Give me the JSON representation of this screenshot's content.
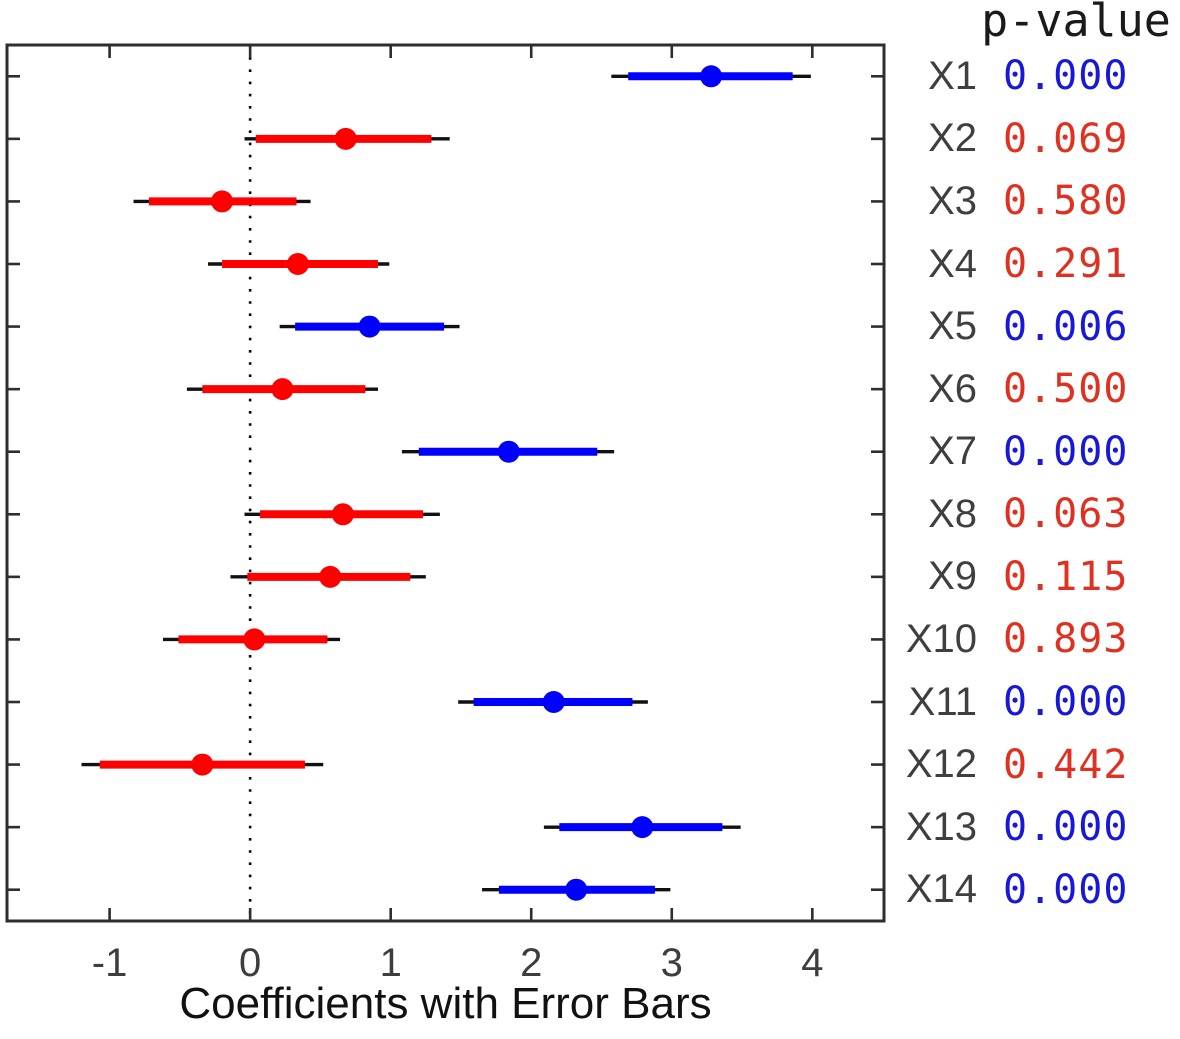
{
  "chart_data": {
    "type": "scatter",
    "subtype": "horizontal-errorbar-coefficient-plot",
    "title": "",
    "xlabel": "Coefficients with Error Bars",
    "ylabel": "",
    "p_value_header": "p-value",
    "x_ticks": [
      -1,
      0,
      1,
      2,
      3,
      4
    ],
    "xlim": [
      -1.73,
      4.51
    ],
    "zero_line_x": 0,
    "grid": false,
    "legend": false,
    "series": [
      {
        "name": "X1",
        "coef": 3.28,
        "ci_inner": [
          2.69,
          3.86
        ],
        "ci_outer": [
          2.57,
          3.99
        ],
        "p_value": "0.000",
        "significant": true
      },
      {
        "name": "X2",
        "coef": 0.68,
        "ci_inner": [
          0.04,
          1.29
        ],
        "ci_outer": [
          -0.04,
          1.42
        ],
        "p_value": "0.069",
        "significant": false
      },
      {
        "name": "X3",
        "coef": -0.2,
        "ci_inner": [
          -0.72,
          0.33
        ],
        "ci_outer": [
          -0.83,
          0.43
        ],
        "p_value": "0.580",
        "significant": false
      },
      {
        "name": "X4",
        "coef": 0.34,
        "ci_inner": [
          -0.2,
          0.91
        ],
        "ci_outer": [
          -0.3,
          0.99
        ],
        "p_value": "0.291",
        "significant": false
      },
      {
        "name": "X5",
        "coef": 0.85,
        "ci_inner": [
          0.32,
          1.38
        ],
        "ci_outer": [
          0.21,
          1.49
        ],
        "p_value": "0.006",
        "significant": true
      },
      {
        "name": "X6",
        "coef": 0.23,
        "ci_inner": [
          -0.34,
          0.82
        ],
        "ci_outer": [
          -0.45,
          0.91
        ],
        "p_value": "0.500",
        "significant": false
      },
      {
        "name": "X7",
        "coef": 1.84,
        "ci_inner": [
          1.2,
          2.47
        ],
        "ci_outer": [
          1.08,
          2.59
        ],
        "p_value": "0.000",
        "significant": true
      },
      {
        "name": "X8",
        "coef": 0.66,
        "ci_inner": [
          0.07,
          1.23
        ],
        "ci_outer": [
          -0.04,
          1.35
        ],
        "p_value": "0.063",
        "significant": false
      },
      {
        "name": "X9",
        "coef": 0.57,
        "ci_inner": [
          -0.02,
          1.14
        ],
        "ci_outer": [
          -0.14,
          1.25
        ],
        "p_value": "0.115",
        "significant": false
      },
      {
        "name": "X10",
        "coef": 0.03,
        "ci_inner": [
          -0.51,
          0.55
        ],
        "ci_outer": [
          -0.62,
          0.64
        ],
        "p_value": "0.893",
        "significant": false
      },
      {
        "name": "X11",
        "coef": 2.16,
        "ci_inner": [
          1.59,
          2.72
        ],
        "ci_outer": [
          1.48,
          2.83
        ],
        "p_value": "0.000",
        "significant": true
      },
      {
        "name": "X12",
        "coef": -0.34,
        "ci_inner": [
          -1.07,
          0.39
        ],
        "ci_outer": [
          -1.2,
          0.52
        ],
        "p_value": "0.442",
        "significant": false
      },
      {
        "name": "X13",
        "coef": 2.79,
        "ci_inner": [
          2.2,
          3.36
        ],
        "ci_outer": [
          2.09,
          3.49
        ],
        "p_value": "0.000",
        "significant": true
      },
      {
        "name": "X14",
        "coef": 2.32,
        "ci_inner": [
          1.77,
          2.88
        ],
        "ci_outer": [
          1.65,
          2.99
        ],
        "p_value": "0.000",
        "significant": true
      }
    ],
    "colors": {
      "significant_marker": "#0000ff",
      "nonsignificant_marker": "#ff0000",
      "significant_text": "#1818d8",
      "nonsignificant_text": "#e03020",
      "outer_bar": "#111111",
      "axis": "#2e2e2e",
      "tick_label": "#3d3d3d",
      "variable_label": "#3f3f3f",
      "xlabel_text": "#111111",
      "header_text": "#1a1a1a",
      "background": "#ffffff"
    }
  }
}
